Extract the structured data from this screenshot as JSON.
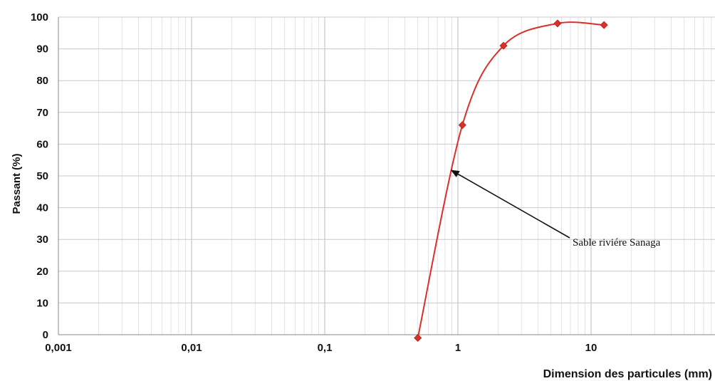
{
  "chart_data": {
    "type": "line",
    "xscale": "log",
    "xlim": [
      0.001,
      100
    ],
    "ylim": [
      0,
      100
    ],
    "xticks": [
      "0,001",
      "0,01",
      "0,1",
      "1",
      "10"
    ],
    "yticks": [
      "0",
      "10",
      "20",
      "30",
      "40",
      "50",
      "60",
      "70",
      "80",
      "90",
      "100"
    ],
    "xlabel": "Dimension des particules (mm)",
    "ylabel": "Passant (%)",
    "grid": true,
    "series": [
      {
        "name": "Sable riviére Sanaga",
        "color": "#d9302a",
        "x": [
          0.5,
          1.08,
          2.2,
          5.6,
          12.5
        ],
        "y": [
          -1,
          66,
          91,
          98,
          97.5
        ]
      }
    ],
    "annotation": {
      "text": "Sable riviére Sanaga",
      "points_to": {
        "x": 0.87,
        "y": 52
      }
    }
  }
}
